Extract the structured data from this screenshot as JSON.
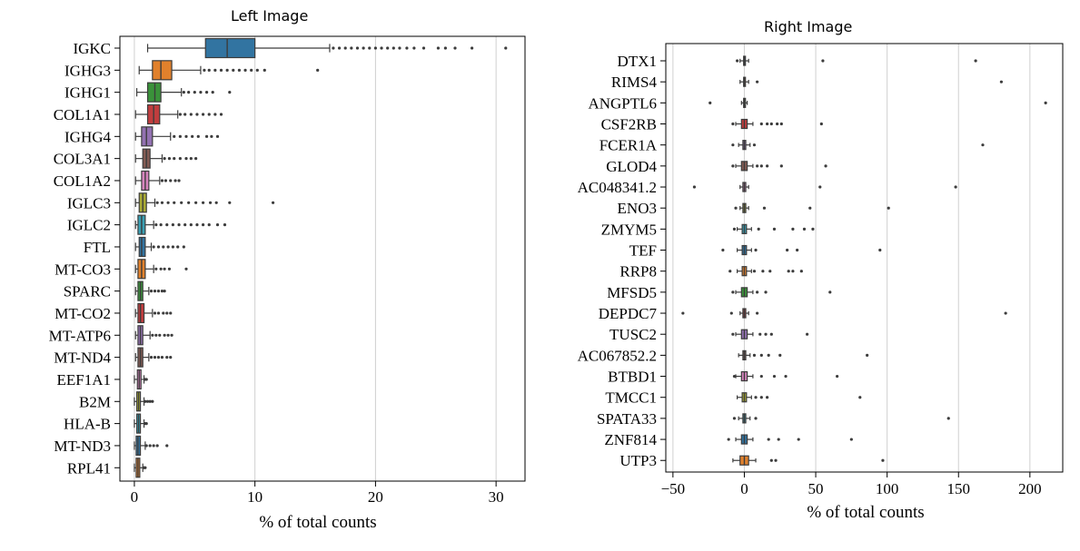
{
  "panels": [
    {
      "title": "Left Image",
      "xlabel": "% of total counts",
      "xticks": [
        0,
        10,
        20,
        30
      ],
      "xlim": [
        -1.2,
        32.4
      ]
    },
    {
      "title": "Right Image",
      "xlabel": "% of total counts",
      "xticks": [
        -50,
        0,
        50,
        100,
        150,
        200
      ],
      "xlim": [
        -55,
        223
      ]
    }
  ],
  "chart_data": [
    {
      "type": "box",
      "title": "Left Image",
      "xlabel": "% of total counts",
      "ylabel": "",
      "xlim": [
        -1.2,
        32.4
      ],
      "grid": "vertical",
      "genes": [
        {
          "name": "IGKC",
          "color": "#3274a1",
          "wlo": 1.1,
          "q1": 5.9,
          "med": 7.7,
          "q3": 10.0,
          "whi": 16.2,
          "outliers": [
            16.5,
            17.0,
            17.5,
            18.0,
            18.5,
            19.0,
            19.5,
            20.0,
            20.5,
            21.0,
            21.5,
            22.0,
            22.6,
            23.2,
            24.0,
            25.2,
            25.8,
            26.6,
            28.0,
            30.8
          ]
        },
        {
          "name": "IGHG3",
          "color": "#e1812c",
          "wlo": 0.4,
          "q1": 1.5,
          "med": 2.2,
          "q3": 3.1,
          "whi": 5.5,
          "outliers": [
            5.8,
            6.2,
            6.7,
            7.2,
            7.7,
            8.2,
            8.7,
            9.2,
            9.7,
            10.2,
            10.8,
            15.2
          ]
        },
        {
          "name": "IGHG1",
          "color": "#3a923a",
          "wlo": 0.2,
          "q1": 1.1,
          "med": 1.7,
          "q3": 2.2,
          "whi": 3.9,
          "outliers": [
            4.1,
            4.5,
            5.0,
            5.5,
            6.0,
            6.5,
            7.9
          ]
        },
        {
          "name": "COL1A1",
          "color": "#c03d3e",
          "wlo": 0.1,
          "q1": 1.1,
          "med": 1.6,
          "q3": 2.1,
          "whi": 3.6,
          "outliers": [
            3.8,
            4.2,
            4.7,
            5.2,
            5.7,
            6.2,
            6.7,
            7.2
          ]
        },
        {
          "name": "IGHG4",
          "color": "#9372b2",
          "wlo": 0.1,
          "q1": 0.6,
          "med": 1.0,
          "q3": 1.5,
          "whi": 3.0,
          "outliers": [
            3.3,
            3.8,
            4.3,
            4.8,
            5.3,
            6.0,
            6.4,
            6.9
          ]
        },
        {
          "name": "COL3A1",
          "color": "#845b53",
          "wlo": 0.1,
          "q1": 0.7,
          "med": 1.0,
          "q3": 1.3,
          "whi": 2.3,
          "outliers": [
            2.5,
            2.9,
            3.3,
            3.8,
            4.3,
            4.7,
            5.1
          ]
        },
        {
          "name": "COL1A2",
          "color": "#d684bd",
          "wlo": 0.1,
          "q1": 0.6,
          "med": 0.9,
          "q3": 1.2,
          "whi": 2.1,
          "outliers": [
            2.3,
            2.6,
            3.0,
            3.4,
            3.7
          ]
        },
        {
          "name": "IGLC3",
          "color": "#a9aa35",
          "wlo": 0.1,
          "q1": 0.4,
          "med": 0.7,
          "q3": 1.0,
          "whi": 1.7,
          "outliers": [
            1.9,
            2.3,
            2.8,
            3.3,
            3.9,
            4.5,
            5.1,
            5.7,
            6.3,
            6.8,
            7.9,
            11.5
          ]
        },
        {
          "name": "IGLC2",
          "color": "#3a9fb3",
          "wlo": 0.1,
          "q1": 0.3,
          "med": 0.6,
          "q3": 0.9,
          "whi": 1.6,
          "outliers": [
            1.8,
            2.2,
            2.7,
            3.2,
            3.7,
            4.2,
            4.7,
            5.2,
            5.7,
            6.2,
            6.9,
            7.5
          ]
        },
        {
          "name": "FTL",
          "color": "#3274a1",
          "wlo": 0.1,
          "q1": 0.4,
          "med": 0.6,
          "q3": 0.9,
          "whi": 1.4,
          "outliers": [
            1.6,
            2.0,
            2.4,
            2.8,
            3.2,
            3.6,
            4.1
          ]
        },
        {
          "name": "MT-CO3",
          "color": "#e1812c",
          "wlo": 0.1,
          "q1": 0.3,
          "med": 0.6,
          "q3": 0.9,
          "whi": 1.6,
          "outliers": [
            1.8,
            2.2,
            2.5,
            2.9,
            4.3
          ]
        },
        {
          "name": "SPARC",
          "color": "#3a923a",
          "wlo": 0.1,
          "q1": 0.3,
          "med": 0.5,
          "q3": 0.7,
          "whi": 1.2,
          "outliers": [
            1.4,
            1.7,
            2.0,
            2.3,
            2.5
          ]
        },
        {
          "name": "MT-CO2",
          "color": "#c03d3e",
          "wlo": 0.1,
          "q1": 0.3,
          "med": 0.5,
          "q3": 0.8,
          "whi": 1.5,
          "outliers": [
            1.7,
            2.0,
            2.4,
            2.7,
            3.0
          ]
        },
        {
          "name": "MT-ATP6",
          "color": "#9372b2",
          "wlo": 0.1,
          "q1": 0.3,
          "med": 0.5,
          "q3": 0.7,
          "whi": 1.3,
          "outliers": [
            1.5,
            1.8,
            2.1,
            2.5,
            2.8,
            3.1
          ]
        },
        {
          "name": "MT-ND4",
          "color": "#845b53",
          "wlo": 0.1,
          "q1": 0.3,
          "med": 0.5,
          "q3": 0.7,
          "whi": 1.2,
          "outliers": [
            1.4,
            1.7,
            2.0,
            2.3,
            2.7,
            3.0
          ]
        },
        {
          "name": "EEF1A1",
          "color": "#d684bd",
          "wlo": 0.0,
          "q1": 0.25,
          "med": 0.4,
          "q3": 0.55,
          "whi": 0.8,
          "outliers": [
            0.9,
            1.0
          ]
        },
        {
          "name": "B2M",
          "color": "#a9aa35",
          "wlo": 0.0,
          "q1": 0.2,
          "med": 0.35,
          "q3": 0.5,
          "whi": 0.8,
          "outliers": [
            0.9,
            1.1,
            1.3,
            1.5
          ]
        },
        {
          "name": "HLA-B",
          "color": "#3a9fb3",
          "wlo": 0.0,
          "q1": 0.2,
          "med": 0.35,
          "q3": 0.5,
          "whi": 0.8,
          "outliers": [
            0.9,
            1.0
          ]
        },
        {
          "name": "MT-ND3",
          "color": "#3274a1",
          "wlo": 0.0,
          "q1": 0.15,
          "med": 0.3,
          "q3": 0.5,
          "whi": 0.9,
          "outliers": [
            1.0,
            1.3,
            1.6,
            1.9,
            2.7
          ]
        },
        {
          "name": "RPL41",
          "color": "#e1812c",
          "wlo": 0.0,
          "q1": 0.15,
          "med": 0.3,
          "q3": 0.45,
          "whi": 0.7,
          "outliers": [
            0.8,
            0.9
          ]
        }
      ]
    },
    {
      "type": "box",
      "title": "Right Image",
      "xlabel": "% of total counts",
      "ylabel": "",
      "xlim": [
        -55,
        223
      ],
      "grid": "vertical",
      "genes": [
        {
          "name": "DTX1",
          "color": "#3274a1",
          "wlo": -3,
          "q1": -0.5,
          "med": 0,
          "q3": 0.5,
          "whi": 3,
          "outliers": [
            -5,
            55,
            162
          ]
        },
        {
          "name": "RIMS4",
          "color": "#e1812c",
          "wlo": -3,
          "q1": -0.5,
          "med": 0,
          "q3": 0.5,
          "whi": 3,
          "outliers": [
            9,
            180
          ]
        },
        {
          "name": "ANGPTL6",
          "color": "#3a923a",
          "wlo": -2,
          "q1": -0.5,
          "med": 0,
          "q3": 0.5,
          "whi": 2,
          "outliers": [
            -24,
            211
          ]
        },
        {
          "name": "CSF2RB",
          "color": "#c03d3e",
          "wlo": -6,
          "q1": -2,
          "med": 0,
          "q3": 2,
          "whi": 6,
          "outliers": [
            -8,
            12,
            16,
            19,
            23,
            26,
            54
          ]
        },
        {
          "name": "FCER1A",
          "color": "#9372b2",
          "wlo": -4,
          "q1": -1,
          "med": 0,
          "q3": 1,
          "whi": 4,
          "outliers": [
            -8,
            7,
            167
          ]
        },
        {
          "name": "GLOD4",
          "color": "#845b53",
          "wlo": -6,
          "q1": -2,
          "med": 0,
          "q3": 2,
          "whi": 6,
          "outliers": [
            -8,
            9,
            12,
            16,
            26,
            57
          ]
        },
        {
          "name": "AC048341.2",
          "color": "#d684bd",
          "wlo": -3,
          "q1": -1,
          "med": 0,
          "q3": 1,
          "whi": 3,
          "outliers": [
            -35,
            53,
            148
          ]
        },
        {
          "name": "ENO3",
          "color": "#a9aa35",
          "wlo": -3,
          "q1": -1,
          "med": 0,
          "q3": 1,
          "whi": 3,
          "outliers": [
            -6,
            14,
            46,
            101
          ]
        },
        {
          "name": "ZMYM5",
          "color": "#3a9fb3",
          "wlo": -5,
          "q1": -1.5,
          "med": 0,
          "q3": 1.5,
          "whi": 5,
          "outliers": [
            -7,
            10,
            21,
            34,
            42,
            48
          ]
        },
        {
          "name": "TEF",
          "color": "#3274a1",
          "wlo": -5,
          "q1": -1.5,
          "med": 0,
          "q3": 1.5,
          "whi": 5,
          "outliers": [
            -15,
            8,
            30,
            37,
            95
          ]
        },
        {
          "name": "RRP8",
          "color": "#e1812c",
          "wlo": -5,
          "q1": -1.5,
          "med": 0,
          "q3": 1.5,
          "whi": 5,
          "outliers": [
            -10,
            7,
            13,
            18,
            31,
            34,
            40
          ]
        },
        {
          "name": "MFSD5",
          "color": "#3a923a",
          "wlo": -6,
          "q1": -2,
          "med": 0,
          "q3": 2,
          "whi": 6,
          "outliers": [
            -8,
            9,
            15,
            60
          ]
        },
        {
          "name": "DEPDC7",
          "color": "#c03d3e",
          "wlo": -3,
          "q1": -1,
          "med": 0,
          "q3": 1,
          "whi": 3,
          "outliers": [
            -43,
            -9,
            9,
            183
          ]
        },
        {
          "name": "TUSC2",
          "color": "#9372b2",
          "wlo": -6,
          "q1": -2,
          "med": 0,
          "q3": 2,
          "whi": 6,
          "outliers": [
            -8,
            11,
            15,
            19,
            44
          ]
        },
        {
          "name": "AC067852.2",
          "color": "#845b53",
          "wlo": -4,
          "q1": -1,
          "med": 0,
          "q3": 1,
          "whi": 4,
          "outliers": [
            7,
            12,
            17,
            25,
            86
          ]
        },
        {
          "name": "BTBD1",
          "color": "#d684bd",
          "wlo": -6,
          "q1": -2,
          "med": 0,
          "q3": 2,
          "whi": 6,
          "outliers": [
            -7,
            12,
            21,
            29,
            65
          ]
        },
        {
          "name": "TMCC1",
          "color": "#a9aa35",
          "wlo": -5,
          "q1": -1.5,
          "med": 0,
          "q3": 1.5,
          "whi": 5,
          "outliers": [
            8,
            12,
            16,
            81
          ]
        },
        {
          "name": "SPATA33",
          "color": "#3a9fb3",
          "wlo": -4,
          "q1": -1,
          "med": 0,
          "q3": 1,
          "whi": 4,
          "outliers": [
            -7,
            8,
            143
          ]
        },
        {
          "name": "ZNF814",
          "color": "#3274a1",
          "wlo": -6,
          "q1": -2,
          "med": 0,
          "q3": 2,
          "whi": 6,
          "outliers": [
            -11,
            17,
            24,
            38,
            75
          ]
        },
        {
          "name": "UTP3",
          "color": "#e1812c",
          "wlo": -8,
          "q1": -3,
          "med": 0,
          "q3": 3,
          "whi": 8,
          "outliers": [
            19,
            22,
            97
          ]
        }
      ]
    }
  ]
}
